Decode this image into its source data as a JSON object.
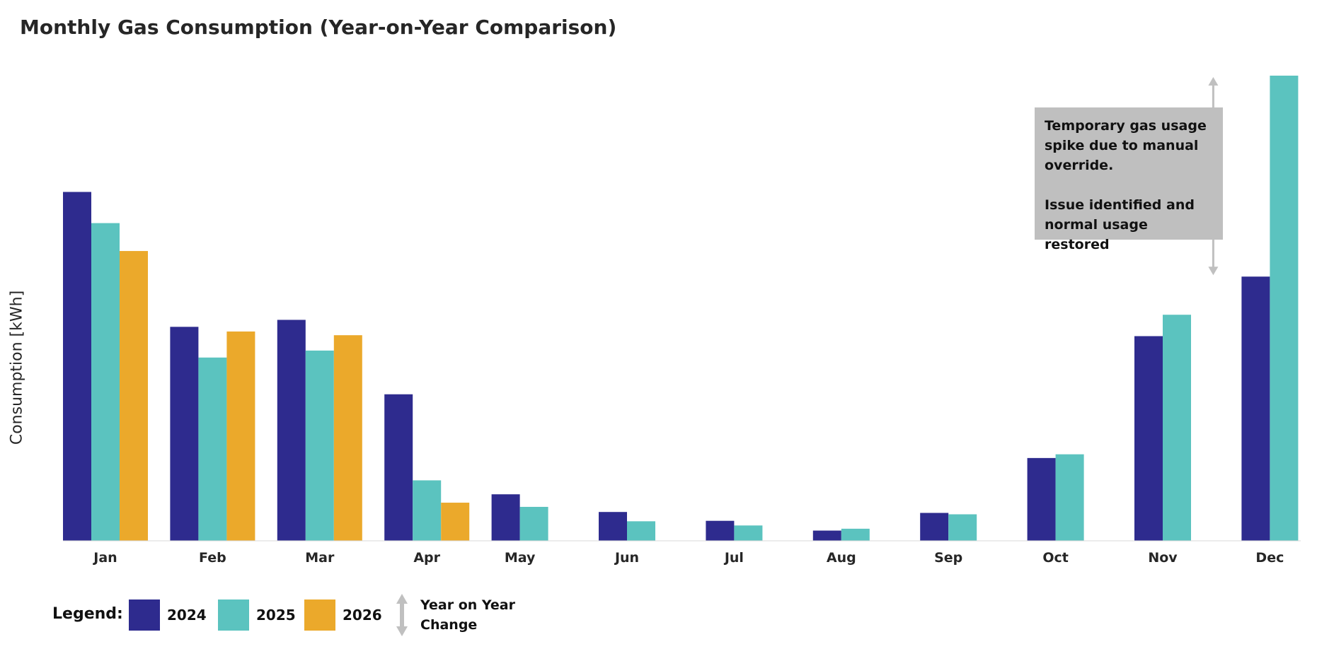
{
  "title": "Monthly Gas Consumption (Year-on-Year Comparison)",
  "chart_data": {
    "type": "bar",
    "title": "Monthly Gas Consumption (Year-on-Year Comparison)",
    "ylabel": "Consumption [kWh]",
    "xlabel": "",
    "categories": [
      "Jan",
      "Feb",
      "Mar",
      "Apr",
      "May",
      "Jun",
      "Jul",
      "Aug",
      "Sep",
      "Oct",
      "Nov",
      "Dec"
    ],
    "ylim": [
      0,
      100
    ],
    "grid": false,
    "series": [
      {
        "name": "2024",
        "color": "#2e2b8e",
        "values": [
          75,
          46,
          47.5,
          31.5,
          10,
          6.2,
          4.3,
          2.2,
          6,
          17.8,
          44,
          56.8
        ]
      },
      {
        "name": "2025",
        "color": "#5bc3bf",
        "values": [
          68.3,
          39.4,
          40.9,
          13,
          7.3,
          4.2,
          3.3,
          2.6,
          5.7,
          18.6,
          48.6,
          100
        ]
      },
      {
        "name": "2026",
        "color": "#eba92b",
        "values": [
          62.3,
          45,
          44.2,
          8.2,
          null,
          null,
          null,
          null,
          null,
          null,
          null,
          null
        ]
      }
    ],
    "annotation": {
      "category": "Dec",
      "from_series": "2024",
      "to_series": "2025",
      "lines": [
        "Temporary gas usage spike due to manual override.",
        "Issue identified and normal usage restored"
      ]
    }
  },
  "legend": {
    "title": "Legend:",
    "items": [
      {
        "label": "2024",
        "color": "#2e2b8e"
      },
      {
        "label": "2025",
        "color": "#5bc3bf"
      },
      {
        "label": "2026",
        "color": "#eba92b"
      }
    ],
    "yoy_label": "Year on Year Change",
    "arrow_color": "#c0c0c0"
  }
}
